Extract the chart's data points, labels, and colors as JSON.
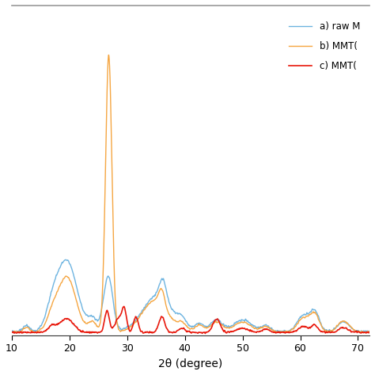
{
  "title": "",
  "xlabel": "2θ (degree)",
  "ylabel": "",
  "xlim": [
    10,
    72
  ],
  "ylim": [
    0,
    1.0
  ],
  "legend": [
    {
      "label": "a) raw M",
      "color": "#6EB4E0"
    },
    {
      "label": "b) MMT(",
      "color": "#F5A642"
    },
    {
      "label": "c) MMT(",
      "color": "#E8180C"
    }
  ],
  "background_color": "#ffffff",
  "xticks": [
    10,
    20,
    30,
    40,
    50,
    60,
    70
  ],
  "border_color": "#999999"
}
